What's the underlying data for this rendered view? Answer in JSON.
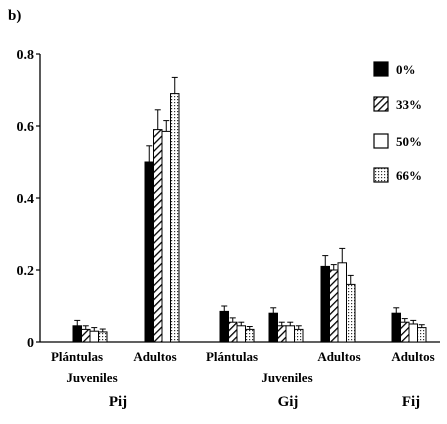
{
  "panel_label": "b)",
  "chart_data": {
    "type": "bar",
    "title": "",
    "xlabel": "",
    "ylabel": "",
    "ylim": [
      0,
      0.8
    ],
    "yticks": [
      "0",
      "0.2",
      "0.4",
      "0.6",
      "0.8"
    ],
    "error_bars": true,
    "legend_position": "right",
    "series": [
      {
        "name": "0%",
        "fill": "#000000"
      },
      {
        "name": "33%",
        "fill": "hatch"
      },
      {
        "name": "50%",
        "fill": "#ffffff"
      },
      {
        "name": "66%",
        "fill": "dots"
      }
    ],
    "groups": [
      {
        "name": "Pij",
        "categories": [
          {
            "label": "Plántulas",
            "values": [
              0.045,
              0.035,
              0.03,
              0.028
            ],
            "errors": [
              0.015,
              0.01,
              0.01,
              0.008
            ]
          },
          {
            "label": "Juveniles",
            "values": [],
            "errors": []
          },
          {
            "label": "Adultos",
            "values": [
              0.5,
              0.59,
              0.585,
              0.69
            ],
            "errors": [
              0.045,
              0.055,
              0.03,
              0.045
            ]
          }
        ]
      },
      {
        "name": "Gij",
        "categories": [
          {
            "label": "Plántulas",
            "values": [
              0.085,
              0.055,
              0.045,
              0.035
            ],
            "errors": [
              0.015,
              0.012,
              0.01,
              0.008
            ]
          },
          {
            "label": "Juveniles",
            "values": [
              0.08,
              0.045,
              0.045,
              0.035
            ],
            "errors": [
              0.015,
              0.01,
              0.01,
              0.01
            ]
          },
          {
            "label": "Adultos",
            "values": [
              0.21,
              0.2,
              0.22,
              0.16
            ],
            "errors": [
              0.03,
              0.015,
              0.04,
              0.025
            ]
          }
        ]
      },
      {
        "name": "Fij",
        "categories": [
          {
            "label": "Adultos",
            "values": [
              0.08,
              0.055,
              0.05,
              0.04
            ],
            "errors": [
              0.015,
              0.01,
              0.01,
              0.008
            ]
          }
        ]
      }
    ]
  }
}
